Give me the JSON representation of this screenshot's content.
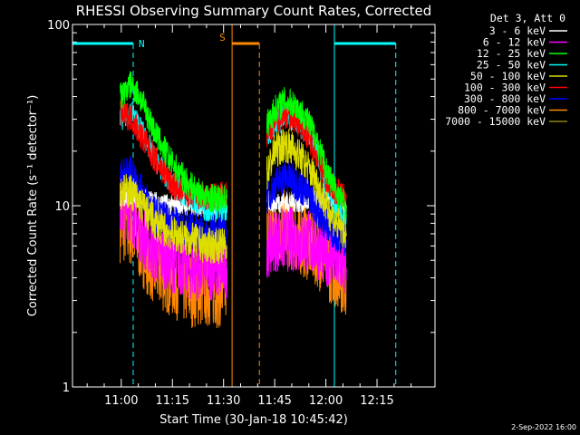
{
  "chart_data": {
    "type": "line",
    "title": "RHESSI Observing Summary Count Rates, Corrected",
    "xlabel": "Start Time (30-Jan-18 10:45:42)",
    "ylabel": "Corrected Count Rate (s⁻¹ detector⁻¹)",
    "y_scale": "log",
    "ylim": [
      1,
      100
    ],
    "xlim": [
      "10:45:42",
      "12:32:00"
    ],
    "x_ticks": [
      "11:00",
      "11:15",
      "11:30",
      "11:45",
      "12:00",
      "12:15"
    ],
    "y_ticks": [
      "1",
      "10",
      "100"
    ],
    "legend_header": "Det 3, Att 0",
    "legend_position": "top-right, outside plot",
    "footer_date": "2-Sep-2022 16:00",
    "night_label": "N",
    "saa_label": "S",
    "night_color": "#00ffff",
    "saa_color": "#ff8800",
    "event_bars": [
      {
        "type": "night",
        "start": "10:45:42",
        "end": "11:03:30"
      },
      {
        "type": "night",
        "start": "12:02:30",
        "end": "12:20:30"
      },
      {
        "type": "saa",
        "start": "11:32:30",
        "end": "11:40:30"
      }
    ],
    "data_gaps": [
      {
        "start": "10:45:42",
        "end": "10:59:30"
      },
      {
        "start": "11:31:30",
        "end": "11:42:30"
      },
      {
        "start": "12:06:30",
        "end": "12:32:00"
      }
    ],
    "series": [
      {
        "name": "3 - 6 keV",
        "color": "#ffffff",
        "x": [
          "10:59:40",
          "11:03",
          "11:06",
          "11:10",
          "11:15",
          "11:20",
          "11:25",
          "11:31",
          "11:42:40",
          "11:45",
          "11:48",
          "11:51",
          "11:54",
          "11:57",
          "12:00",
          "12:03",
          "12:06"
        ],
        "values": [
          11,
          11.5,
          11,
          10.5,
          10,
          10,
          10,
          10,
          10.5,
          10.5,
          10.5,
          10.5,
          10.5,
          10.5,
          10.5,
          10.5,
          10
        ]
      },
      {
        "name": "6 - 12 keV",
        "color": "#ff00ff",
        "x": [
          "10:59:40",
          "11:03",
          "11:06",
          "11:10",
          "11:15",
          "11:20",
          "11:25",
          "11:31",
          "11:42:40",
          "11:45",
          "11:48",
          "11:51",
          "11:54",
          "11:57",
          "12:00",
          "12:03",
          "12:06"
        ],
        "values": [
          10,
          9.5,
          7,
          5.5,
          5,
          4.5,
          4.5,
          4.5,
          6,
          6.5,
          6.5,
          6.5,
          6.5,
          6,
          5.5,
          5,
          4.5
        ]
      },
      {
        "name": "12 - 25 keV",
        "color": "#00ff00",
        "x": [
          "10:59:40",
          "11:03",
          "11:06",
          "11:10",
          "11:15",
          "11:20",
          "11:25",
          "11:31",
          "11:42:40",
          "11:45",
          "11:48",
          "11:51",
          "11:54",
          "11:57",
          "12:00",
          "12:03",
          "12:06"
        ],
        "values": [
          40,
          47,
          38,
          25,
          17,
          13,
          11,
          11,
          28,
          34,
          38,
          36,
          31,
          24,
          16,
          12,
          10
        ]
      },
      {
        "name": "25 - 50 keV",
        "color": "#00ffff",
        "x": [
          "10:59:40",
          "11:03",
          "11:06",
          "11:10",
          "11:15",
          "11:20",
          "11:25",
          "11:31",
          "11:42:40",
          "11:45",
          "11:48",
          "11:51",
          "11:54",
          "11:57",
          "12:00",
          "12:03",
          "12:06"
        ],
        "values": [
          30,
          33,
          26,
          18,
          13,
          11,
          9.5,
          9.5,
          24,
          28,
          31,
          30,
          26,
          20,
          13,
          10,
          9
        ]
      },
      {
        "name": "50 - 100 keV",
        "color": "#dddd00",
        "x": [
          "10:59:40",
          "11:03",
          "11:06",
          "11:10",
          "11:15",
          "11:20",
          "11:25",
          "11:31",
          "11:42:40",
          "11:45",
          "11:48",
          "11:51",
          "11:54",
          "11:57",
          "12:00",
          "12:03",
          "12:06"
        ],
        "values": [
          12,
          12,
          10,
          8,
          7,
          6.5,
          6,
          6,
          15,
          20,
          22,
          20,
          17,
          14,
          10,
          8,
          7
        ]
      },
      {
        "name": "100 - 300 keV",
        "color": "#ff0000",
        "x": [
          "10:59:40",
          "11:03",
          "11:06",
          "11:10",
          "11:15",
          "11:20",
          "11:25",
          "11:31",
          "11:42:40",
          "11:45",
          "11:48",
          "11:51",
          "11:54",
          "11:57",
          "12:00",
          "12:03",
          "12:06"
        ],
        "values": [
          32,
          31,
          24,
          18,
          13,
          11.5,
          11,
          11.5,
          24,
          29,
          32,
          30,
          26,
          20,
          14,
          12,
          11
        ]
      },
      {
        "name": "300 - 800 keV",
        "color": "#0000ff",
        "x": [
          "10:59:40",
          "11:03",
          "11:06",
          "11:10",
          "11:15",
          "11:20",
          "11:25",
          "11:31",
          "11:42:40",
          "11:45",
          "11:48",
          "11:51",
          "11:54",
          "11:57",
          "12:00",
          "12:03",
          "12:06"
        ],
        "values": [
          15,
          15,
          12,
          9,
          8,
          7.5,
          7,
          7.5,
          11,
          13,
          14.5,
          13.5,
          12,
          10,
          8,
          7,
          6.5
        ]
      },
      {
        "name": "800 - 7000 keV",
        "color": "#ff8800",
        "x": [
          "10:59:40",
          "11:03",
          "11:06",
          "11:10",
          "11:15",
          "11:20",
          "11:25",
          "11:31",
          "11:42:40",
          "11:45",
          "11:48",
          "11:51",
          "11:54",
          "11:57",
          "12:00",
          "12:03",
          "12:06"
        ],
        "values": [
          8,
          7.5,
          6,
          4.5,
          4,
          3.5,
          3.5,
          3.5,
          7,
          7.5,
          7.5,
          7,
          6.5,
          6,
          5,
          4.5,
          4
        ]
      },
      {
        "name": "7000 - 15000 keV",
        "color": "#888800",
        "x": [],
        "values": []
      }
    ]
  }
}
